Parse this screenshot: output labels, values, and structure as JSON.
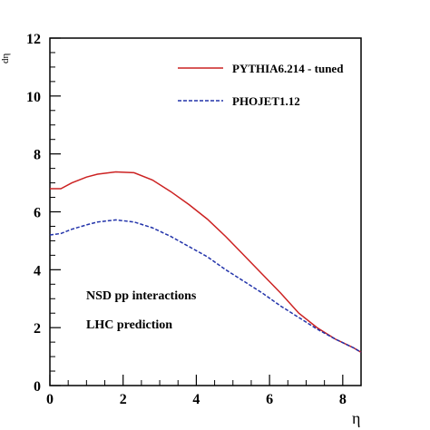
{
  "chart_data": {
    "type": "line",
    "xlabel": "η",
    "ylabel_fragment": "dη",
    "xlim": [
      0,
      8.5
    ],
    "ylim": [
      0,
      12
    ],
    "x_ticks": [
      0,
      2,
      4,
      6,
      8
    ],
    "y_ticks": [
      0,
      2,
      4,
      6,
      8,
      10,
      12
    ],
    "x_tick_labels": [
      "0",
      "2",
      "4",
      "6",
      "8"
    ],
    "y_tick_labels": [
      "0",
      "2",
      "4",
      "6",
      "8",
      "10",
      "12"
    ],
    "grid": false,
    "legend_position": "top-right",
    "series": [
      {
        "name": "PYTHIA6.214 - tuned",
        "color": "#cc2222",
        "dash": "solid",
        "x": [
          0,
          0.3,
          0.6,
          1.0,
          1.3,
          1.8,
          2.3,
          2.8,
          3.3,
          3.8,
          4.3,
          4.8,
          5.3,
          5.8,
          6.3,
          6.8,
          7.3,
          7.8,
          8.3,
          8.5
        ],
        "y": [
          6.8,
          6.8,
          7.0,
          7.2,
          7.3,
          7.38,
          7.35,
          7.1,
          6.7,
          6.25,
          5.75,
          5.15,
          4.5,
          3.85,
          3.2,
          2.5,
          2.0,
          1.6,
          1.3,
          1.15
        ]
      },
      {
        "name": "PHOJET1.12",
        "color": "#2233aa",
        "dash": "dashed",
        "x": [
          0,
          0.3,
          0.6,
          1.0,
          1.3,
          1.8,
          2.3,
          2.8,
          3.3,
          3.8,
          4.3,
          4.8,
          5.3,
          5.8,
          6.3,
          6.8,
          7.3,
          7.8,
          8.3,
          8.5
        ],
        "y": [
          5.2,
          5.25,
          5.4,
          5.55,
          5.65,
          5.72,
          5.65,
          5.45,
          5.15,
          4.8,
          4.45,
          4.0,
          3.6,
          3.2,
          2.75,
          2.35,
          1.95,
          1.6,
          1.3,
          1.15
        ]
      }
    ],
    "annotations": [
      "NSD pp interactions",
      "LHC prediction"
    ]
  }
}
